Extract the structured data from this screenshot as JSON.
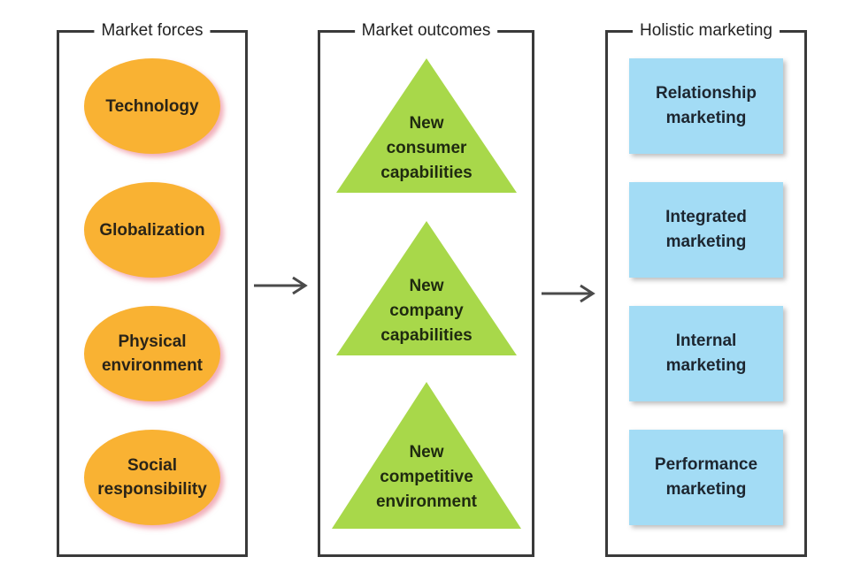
{
  "panels": {
    "forces": {
      "title": "Market forces",
      "items": [
        "Technology",
        "Globalization",
        "Physical\nenvironment",
        "Social\nresponsibility"
      ]
    },
    "outcomes": {
      "title": "Market outcomes",
      "items": [
        "New\nconsumer\ncapabilities",
        "New\ncompany\ncapabilities",
        "New\ncompetitive\nenvironment"
      ]
    },
    "holistic": {
      "title": "Holistic marketing",
      "items": [
        "Relationship\nmarketing",
        "Integrated\nmarketing",
        "Internal\nmarketing",
        "Performance\nmarketing"
      ]
    }
  },
  "colors": {
    "oval_fill": "#f9b233",
    "triangle_fill": "#a8d84a",
    "box_fill": "#a3dcf5",
    "border": "#3a3a3a",
    "arrow": "#4a4a4a"
  },
  "icons": {
    "flow_arrow": "right-arrow-icon"
  }
}
